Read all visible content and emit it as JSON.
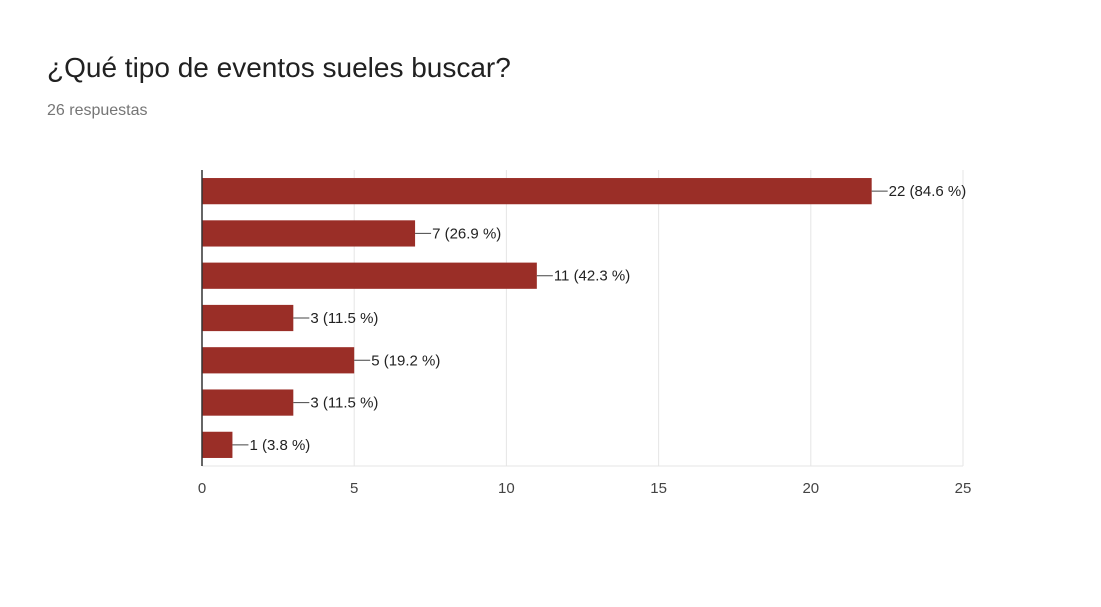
{
  "header": {
    "title": "¿Qué tipo de eventos sueles buscar?",
    "subtitle": "26 respuestas"
  },
  "chart_data": {
    "type": "bar",
    "orientation": "horizontal",
    "values": [
      22,
      7,
      11,
      3,
      5,
      3,
      1
    ],
    "data_labels": [
      "22 (84.6 %)",
      "7 (26.9 %)",
      "11 (42.3 %)",
      "3 (11.5 %)",
      "5 (19.2 %)",
      "3 (11.5 %)",
      "1 (3.8 %)"
    ],
    "xlim": [
      0,
      25
    ],
    "xticks": [
      "0",
      "5",
      "10",
      "15",
      "20",
      "25"
    ],
    "grid": true,
    "bar_color": "#9a2e27"
  }
}
